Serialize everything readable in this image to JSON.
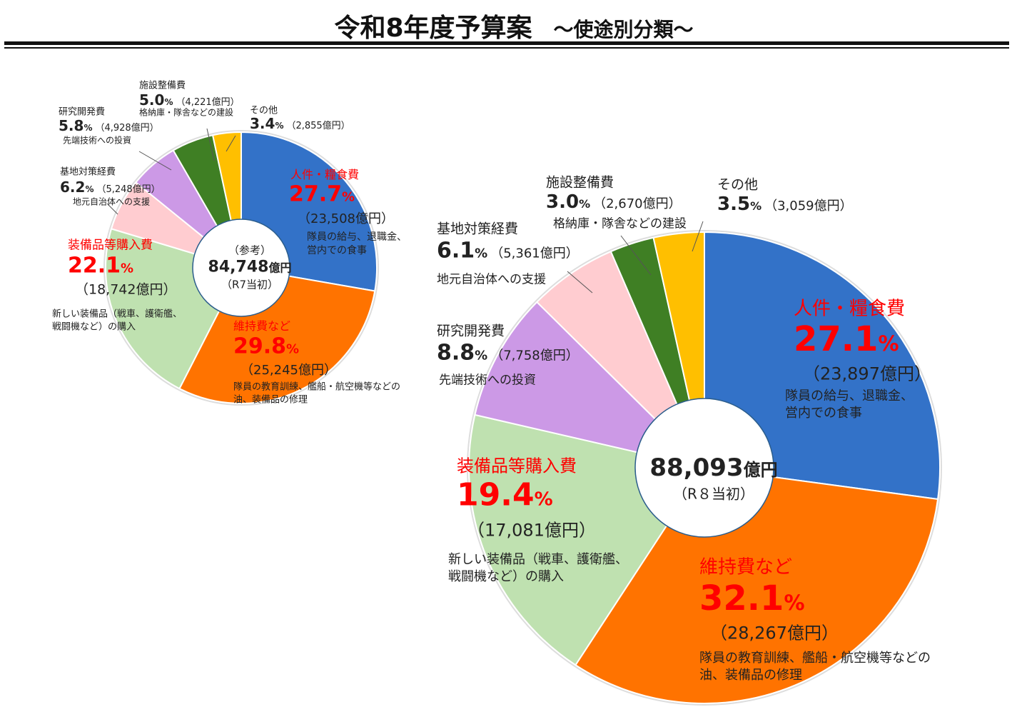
{
  "title": "令和8年度予算案",
  "subtitle": "～使途別分類～",
  "chart_data": [
    {
      "type": "pie",
      "name": "R7",
      "center": {
        "note": "（参考）",
        "total": "84,748",
        "unit": "億円",
        "label": "（R7当初）"
      },
      "slices": [
        {
          "key": "personnel",
          "label": "人件・糧食費",
          "pct": "27.7",
          "value": 23508,
          "amount": "（23,508億円）",
          "desc": [
            "隊員の給与、退職金、",
            "営内での食事"
          ],
          "color": "#3372c8"
        },
        {
          "key": "maintenance",
          "label": "維持費など",
          "pct": "29.8",
          "value": 25245,
          "amount": "（25,245億円）",
          "desc": [
            "隊員の教育訓練、艦船・航空機等などの",
            "油、装備品の修理"
          ],
          "color": "#ff7300"
        },
        {
          "key": "equipment",
          "label": "装備品等購入費",
          "pct": "22.1",
          "value": 18742,
          "amount": "（18,742億円）",
          "desc": [
            "新しい装備品（戦車、護衛艦、",
            "戦闘機など）の購入"
          ],
          "color": "#bfe1b0"
        },
        {
          "key": "base",
          "label": "基地対策経費",
          "pct": "6.2",
          "value": 5248,
          "amount": "（5,248億円）",
          "desc": [
            "地元自治体への支援"
          ],
          "color": "#ffccd0"
        },
        {
          "key": "rnd",
          "label": "研究開発費",
          "pct": "5.8",
          "value": 4928,
          "amount": "（4,928億円）",
          "desc": [
            "先端技術への投資"
          ],
          "color": "#cc99e6"
        },
        {
          "key": "facility",
          "label": "施設整備費",
          "pct": "5.0",
          "value": 4221,
          "amount": "（4,221億円）",
          "desc": [
            "格納庫・隊舎などの建設"
          ],
          "color": "#3f7f24"
        },
        {
          "key": "other",
          "label": "その他",
          "pct": "3.4",
          "value": 2855,
          "amount": "（2,855億円）",
          "desc": [],
          "color": "#ffbf00"
        }
      ]
    },
    {
      "type": "pie",
      "name": "R8",
      "center": {
        "total": "88,093",
        "unit": "億円",
        "label": "（R８当初）"
      },
      "slices": [
        {
          "key": "personnel",
          "label": "人件・糧食費",
          "pct": "27.1",
          "value": 23897,
          "amount": "（23,897億円）",
          "desc": [
            "隊員の給与、退職金、",
            "営内での食事"
          ],
          "color": "#3372c8"
        },
        {
          "key": "maintenance",
          "label": "維持費など",
          "pct": "32.1",
          "value": 28267,
          "amount": "（28,267億円）",
          "desc": [
            "隊員の教育訓練、艦船・航空機等などの",
            "油、装備品の修理"
          ],
          "color": "#ff7300"
        },
        {
          "key": "equipment",
          "label": "装備品等購入費",
          "pct": "19.4",
          "value": 17081,
          "amount": "（17,081億円）",
          "desc": [
            "新しい装備品（戦車、護衛艦、",
            "戦闘機など）の購入"
          ],
          "color": "#bfe1b0"
        },
        {
          "key": "rnd",
          "label": "研究開発費",
          "pct": "8.8",
          "value": 7758,
          "amount": "（7,758億円）",
          "desc": [
            "先端技術への投資"
          ],
          "color": "#cc99e6"
        },
        {
          "key": "base",
          "label": "基地対策経費",
          "pct": "6.1",
          "value": 5361,
          "amount": "（5,361億円）",
          "desc": [
            "地元自治体への支援"
          ],
          "color": "#ffccd0"
        },
        {
          "key": "facility",
          "label": "施設整備費",
          "pct": "3.0",
          "value": 2670,
          "amount": "（2,670億円）",
          "desc": [
            "格納庫・隊舎などの建設"
          ],
          "color": "#3f7f24"
        },
        {
          "key": "other",
          "label": "その他",
          "pct": "3.5",
          "value": 3059,
          "amount": "（3,059億円）",
          "desc": [],
          "color": "#ffbf00"
        }
      ]
    }
  ],
  "pct_unit": "%"
}
